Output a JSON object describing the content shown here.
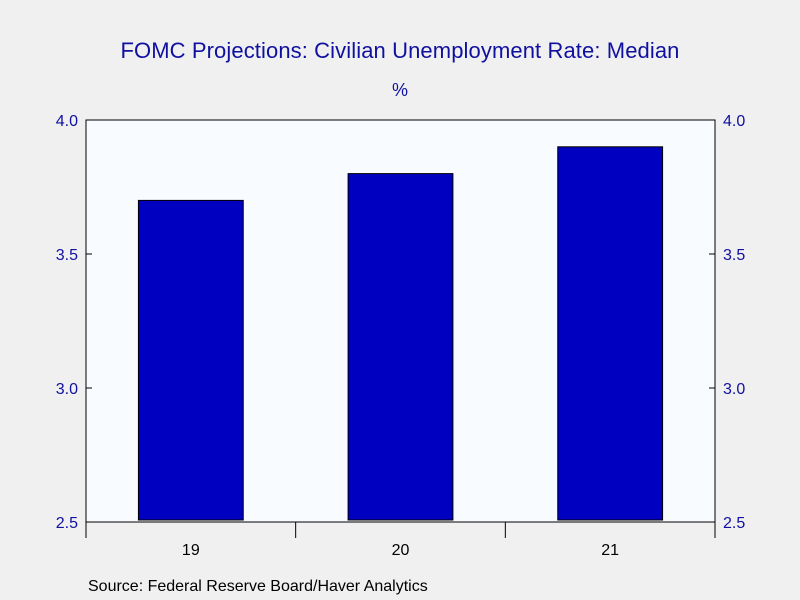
{
  "chart_data": {
    "type": "bar",
    "title": "FOMC Projections: Civilian Unemployment Rate: Median",
    "subtitle": "%",
    "categories": [
      "19",
      "20",
      "21"
    ],
    "values": [
      3.7,
      3.8,
      3.9
    ],
    "ylim": [
      2.5,
      4.0
    ],
    "yticks": [
      "2.5",
      "3.0",
      "3.5",
      "4.0"
    ],
    "ytick_values": [
      2.5,
      3.0,
      3.5,
      4.0
    ],
    "y_axis_both_sides": true,
    "grid": false,
    "source": "Source:  Federal Reserve Board/Haver Analytics"
  },
  "colors": {
    "bar_fill": "#0000c0",
    "bar_stroke": "#000000",
    "plot_bg": "#f8fbff",
    "page_bg": "#f0f0f0",
    "text": "#1010a0",
    "axis": "#000000"
  }
}
